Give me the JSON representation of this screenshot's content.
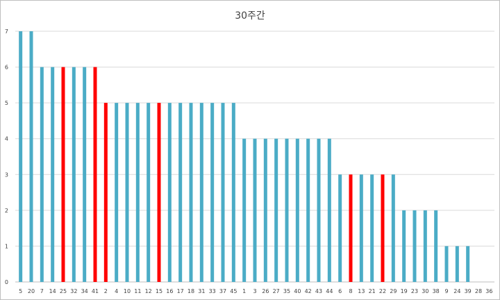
{
  "chart_data": {
    "type": "bar",
    "title": "30주간",
    "xlabel": "",
    "ylabel": "",
    "ylim": [
      0,
      7
    ],
    "yticks": [
      "0",
      "1",
      "2",
      "3",
      "4",
      "5",
      "6",
      "7"
    ],
    "grid": true,
    "legend": "none",
    "categories": [
      "5",
      "20",
      "7",
      "14",
      "25",
      "32",
      "34",
      "41",
      "2",
      "4",
      "10",
      "11",
      "12",
      "15",
      "16",
      "17",
      "18",
      "31",
      "33",
      "37",
      "45",
      "1",
      "3",
      "26",
      "27",
      "35",
      "40",
      "42",
      "43",
      "44",
      "6",
      "8",
      "13",
      "21",
      "22",
      "29",
      "19",
      "23",
      "30",
      "38",
      "9",
      "24",
      "39",
      "28",
      "36"
    ],
    "values": [
      7,
      7,
      6,
      6,
      6,
      6,
      6,
      6,
      5,
      5,
      5,
      5,
      5,
      5,
      5,
      5,
      5,
      5,
      5,
      5,
      5,
      4,
      4,
      4,
      4,
      4,
      4,
      4,
      4,
      4,
      3,
      3,
      3,
      3,
      3,
      3,
      2,
      2,
      2,
      2,
      1,
      1,
      1,
      0,
      0
    ],
    "highlighted": [
      "25",
      "41",
      "2",
      "15",
      "8",
      "22"
    ],
    "colors": {
      "bar": "#4bacc6",
      "highlight": "#ff0000",
      "grid": "#d9d9d9",
      "axis": "#bfbfbf"
    }
  }
}
